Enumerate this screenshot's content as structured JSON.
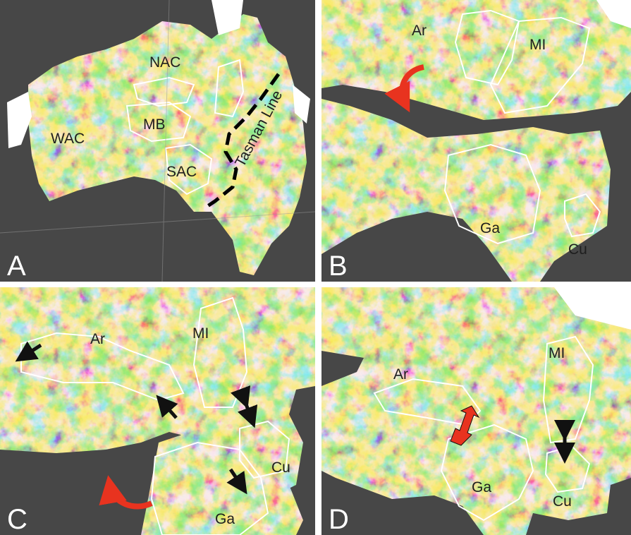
{
  "figure": {
    "background_color": "#474747",
    "colormap": [
      "#1b3fb0",
      "#3f86e0",
      "#54c6c8",
      "#8fd36a",
      "#f2d247",
      "#f08a2e",
      "#d0261d"
    ],
    "boundary_color": "#ffffff",
    "arrow_colors": {
      "rotation": "#e8331f",
      "black": "#111111"
    }
  },
  "panels": [
    {
      "id": "A",
      "label": "A",
      "region_labels": [
        "NAC",
        "WAC",
        "MB",
        "SAC"
      ],
      "line_label": "Tasman Line"
    },
    {
      "id": "B",
      "label": "B",
      "region_labels": [
        "Ar",
        "MI",
        "Ga",
        "Cu"
      ]
    },
    {
      "id": "C",
      "label": "C",
      "region_labels": [
        "Ar",
        "MI",
        "Cu",
        "Ga"
      ]
    },
    {
      "id": "D",
      "label": "D",
      "region_labels": [
        "Ar",
        "MI",
        "Ga",
        "Cu"
      ]
    }
  ]
}
